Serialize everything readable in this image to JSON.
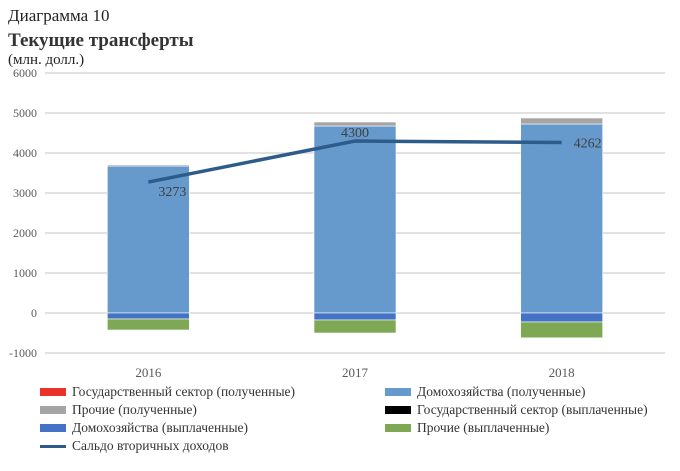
{
  "header": {
    "diagram": "Диаграмма 10",
    "title": "Текущие трансферты",
    "units": "(млн. долл.)"
  },
  "chart_data": {
    "type": "bar",
    "stacked": true,
    "title": "Текущие трансферты",
    "ylabel": "млн. долл.",
    "ylim": [
      -1000,
      6000
    ],
    "yticks": [
      -1000,
      0,
      1000,
      2000,
      3000,
      4000,
      5000,
      6000
    ],
    "categories": [
      "2016",
      "2017",
      "2018"
    ],
    "series": [
      {
        "name": "Государственный сектор (полученные)",
        "color": "#e8322a",
        "values": [
          0,
          0,
          0
        ]
      },
      {
        "name": "Домохозяйства (полученные)",
        "color": "#6699cc",
        "values": [
          3675,
          4675,
          4725
        ]
      },
      {
        "name": "Прочие (полученные)",
        "color": "#a5a5a5",
        "values": [
          30,
          100,
          150
        ]
      },
      {
        "name": "Государственный сектор (выплаченные)",
        "color": "#000000",
        "values": [
          0,
          0,
          0
        ]
      },
      {
        "name": "Домохозяйства (выплаченные)",
        "color": "#4472c4",
        "values": [
          -150,
          -175,
          -225
        ]
      },
      {
        "name": "Прочие (выплаченные)",
        "color": "#7ea854",
        "values": [
          -275,
          -325,
          -395
        ]
      }
    ],
    "line": {
      "name": "Сальдо вторичных доходов",
      "color": "#2e5c8a",
      "values": [
        3273,
        4300,
        4262
      ],
      "labels": [
        "3273",
        "4300",
        "4262"
      ]
    },
    "grid": true,
    "legend_position": "bottom"
  }
}
